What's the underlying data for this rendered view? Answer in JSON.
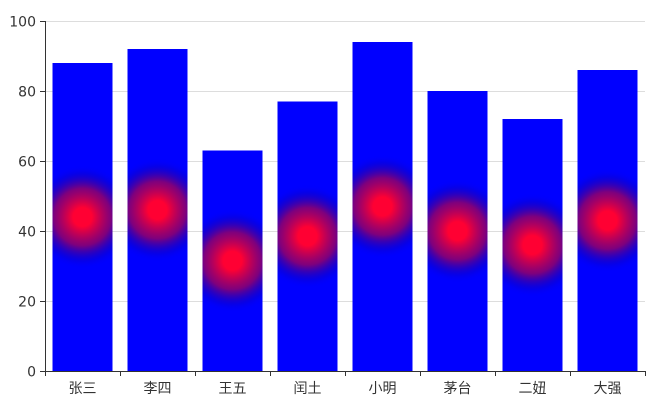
{
  "chart_data": {
    "type": "bar",
    "title": "",
    "xlabel": "",
    "ylabel": "",
    "categories": [
      "张三",
      "李四",
      "王五",
      "闰土",
      "小明",
      "茅台",
      "二妞",
      "大强"
    ],
    "values": [
      88,
      92,
      63,
      77,
      94,
      80,
      72,
      86
    ],
    "ylim": [
      0,
      100
    ],
    "yticks": [
      0,
      20,
      40,
      60,
      80,
      100
    ],
    "grid": true,
    "legend": "none",
    "bar_color": "#0000ff",
    "highlight_color": "#ff0033",
    "highlight_style": "radial glow at half bar height"
  }
}
